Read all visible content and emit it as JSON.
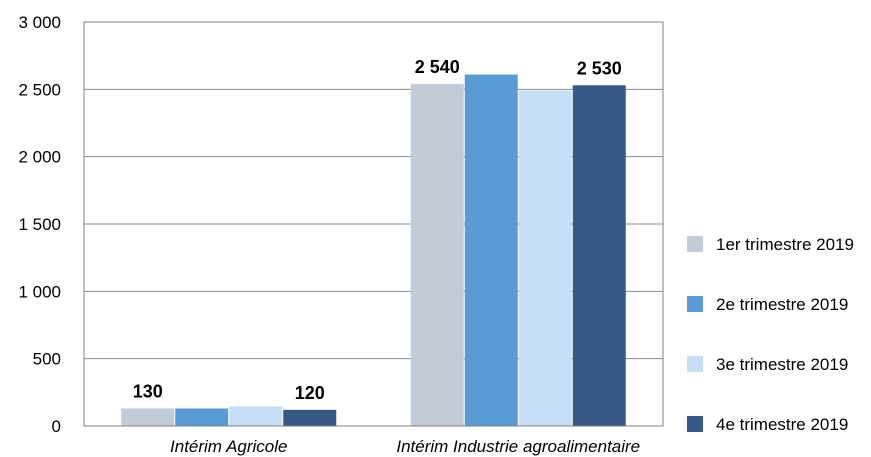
{
  "chart_data": {
    "type": "bar",
    "categories": [
      "Intérim Agricole",
      "Intérim Industrie agroalimentaire"
    ],
    "series": [
      {
        "name": "1er trimestre 2019",
        "color": "#c3cad8",
        "values": [
          130,
          2540
        ]
      },
      {
        "name": "2e trimestre 2019",
        "color": "#5b9bd5",
        "values": [
          130,
          2610
        ]
      },
      {
        "name": "3e trimestre 2019",
        "color": "#c4dff5",
        "values": [
          145,
          2490
        ]
      },
      {
        "name": "4e trimestre 2019",
        "color": "#355a87",
        "values": [
          120,
          2530
        ]
      }
    ],
    "data_labels": [
      {
        "category": 0,
        "series": 0,
        "text": "130"
      },
      {
        "category": 0,
        "series": 3,
        "text": "120"
      },
      {
        "category": 1,
        "series": 0,
        "text": "2 540"
      },
      {
        "category": 1,
        "series": 3,
        "text": "2 530"
      }
    ],
    "yticks": [
      {
        "value": 0,
        "label": "0"
      },
      {
        "value": 500,
        "label": "500"
      },
      {
        "value": 1000,
        "label": "1 000"
      },
      {
        "value": 1500,
        "label": "1 500"
      },
      {
        "value": 2000,
        "label": "2 000"
      },
      {
        "value": 2500,
        "label": "2 500"
      },
      {
        "value": 3000,
        "label": "3 000"
      }
    ],
    "ylim": [
      0,
      3000
    ],
    "grid": true,
    "legend_position": "right",
    "title": "",
    "xlabel": "",
    "ylabel": ""
  }
}
